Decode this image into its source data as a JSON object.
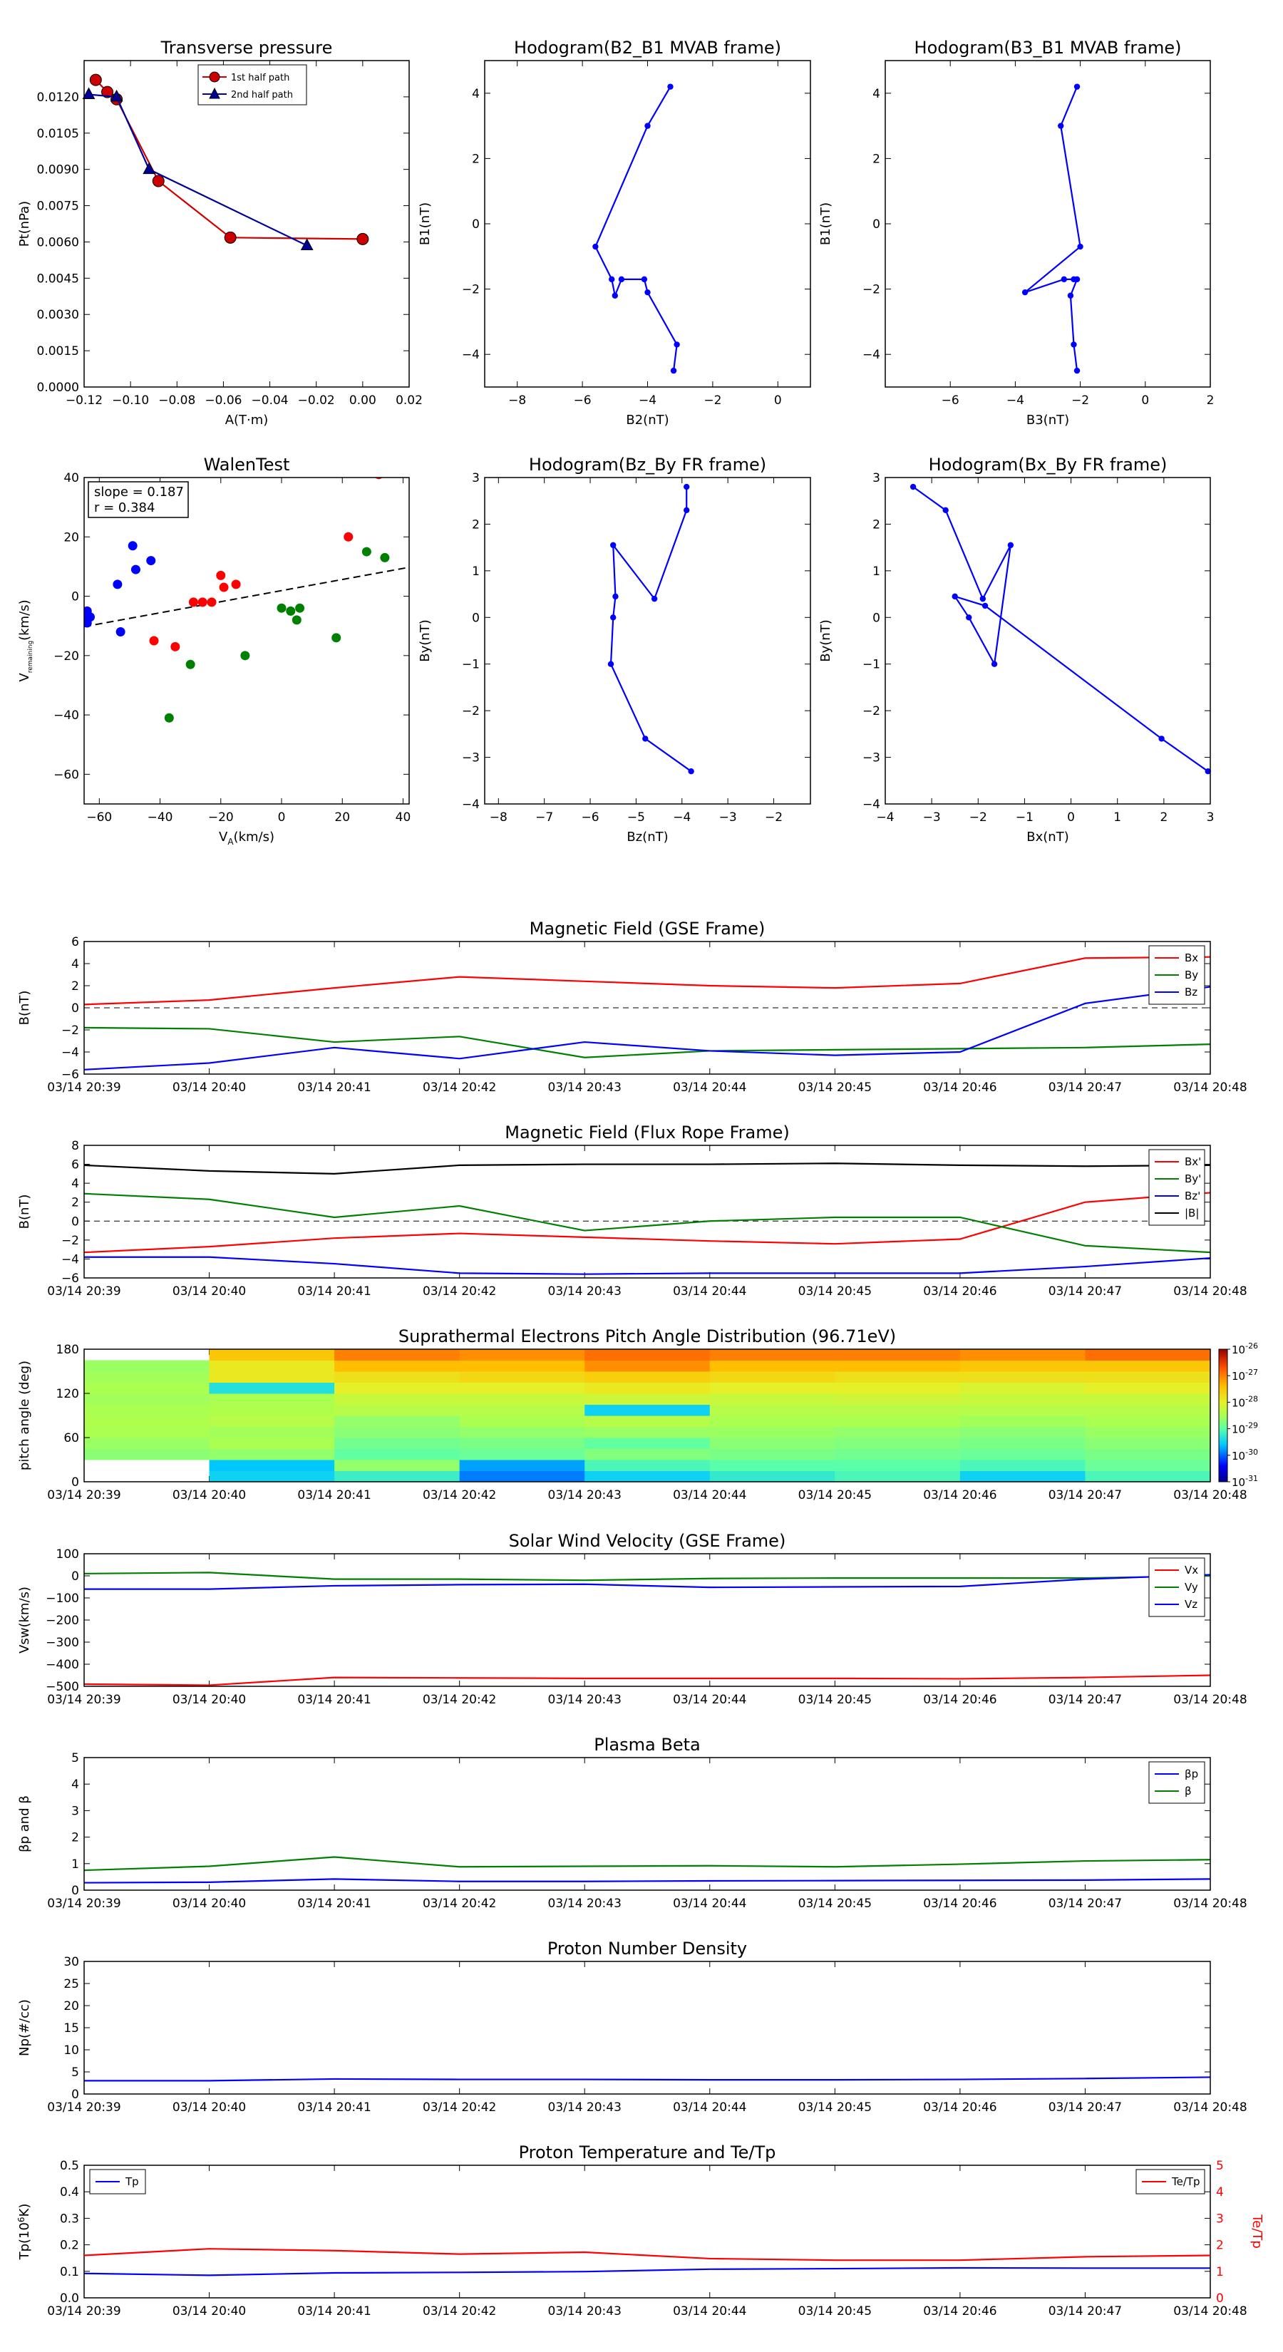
{
  "time_ticks": [
    "03/14 20:39",
    "03/14 20:40",
    "03/14 20:41",
    "03/14 20:42",
    "03/14 20:43",
    "03/14 20:44",
    "03/14 20:45",
    "03/14 20:46",
    "03/14 20:47",
    "03/14 20:48"
  ],
  "chart_data": [
    {
      "id": "pt",
      "type": "line",
      "title": "Transverse pressure",
      "xlabel": "A(T·m)",
      "ylabel": "Pt(nPa)",
      "xlim": [
        -0.12,
        0.02
      ],
      "ylim": [
        0,
        0.0135
      ],
      "xticks": [
        -0.12,
        -0.1,
        -0.08,
        -0.06,
        -0.04,
        -0.02,
        0.0,
        0.02
      ],
      "xtick_labels": [
        "−0.12",
        "−0.10",
        "−0.08",
        "−0.06",
        "−0.04",
        "−0.02",
        "0.00",
        "0.02"
      ],
      "yticks": [
        0,
        0.0015,
        0.003,
        0.0045,
        0.006,
        0.0075,
        0.009,
        0.0105,
        0.012
      ],
      "ytick_labels": [
        "0.0000",
        "0.0015",
        "0.0030",
        "0.0045",
        "0.0060",
        "0.0075",
        "0.0090",
        "0.0105",
        "0.0120"
      ],
      "legend_pos": "top-center",
      "series": [
        {
          "name": "1st half path",
          "color": "#cc0000",
          "marker": "circle",
          "x": [
            0.0,
            -0.057,
            -0.088,
            -0.106,
            -0.11,
            -0.115
          ],
          "y": [
            0.00612,
            0.00618,
            0.00852,
            0.0119,
            0.0122,
            0.0127
          ]
        },
        {
          "name": "2nd half path",
          "color": "#000099",
          "marker": "triangle",
          "x": [
            -0.118,
            -0.106,
            -0.092,
            -0.024
          ],
          "y": [
            0.0121,
            0.012,
            0.009,
            0.00585
          ]
        }
      ]
    },
    {
      "id": "h23",
      "type": "line",
      "title": "Hodogram(B2_B1 MVAB frame)",
      "xlabel": "B2(nT)",
      "ylabel": "B1(nT)",
      "xlim": [
        -9,
        1
      ],
      "ylim": [
        -5,
        5
      ],
      "xticks": [
        -8,
        -6,
        -4,
        -2,
        0
      ],
      "xtick_labels": [
        "−8",
        "−6",
        "−4",
        "−2",
        "0"
      ],
      "yticks": [
        -4,
        -2,
        0,
        2,
        4
      ],
      "ytick_labels": [
        "−4",
        "−2",
        "0",
        "2",
        "4"
      ],
      "series": [
        {
          "name": "",
          "color": "#0000ff",
          "marker": "dot",
          "x": [
            -3.2,
            -3.1,
            -4.0,
            -4.1,
            -4.8,
            -5.0,
            -5.1,
            -5.6,
            -4.0,
            -3.3
          ],
          "y": [
            -4.5,
            -3.7,
            -2.1,
            -1.7,
            -1.7,
            -2.2,
            -1.7,
            -0.7,
            3.0,
            4.2
          ]
        }
      ]
    },
    {
      "id": "h31",
      "type": "line",
      "title": "Hodogram(B3_B1 MVAB frame)",
      "xlabel": "B3(nT)",
      "ylabel": "B1(nT)",
      "xlim": [
        -8,
        2
      ],
      "ylim": [
        -5,
        5
      ],
      "xticks": [
        -6,
        -4,
        -2,
        0,
        2
      ],
      "xtick_labels": [
        "−6",
        "−4",
        "−2",
        "0",
        "2"
      ],
      "yticks": [
        -4,
        -2,
        0,
        2,
        4
      ],
      "ytick_labels": [
        "−4",
        "−2",
        "0",
        "2",
        "4"
      ],
      "series": [
        {
          "name": "",
          "color": "#0000ff",
          "marker": "dot",
          "x": [
            -2.1,
            -2.2,
            -2.3,
            -2.1,
            -2.2,
            -2.5,
            -3.7,
            -2.0,
            -2.6,
            -2.1
          ],
          "y": [
            -4.5,
            -3.7,
            -2.2,
            -1.7,
            -1.7,
            -1.7,
            -2.1,
            -0.7,
            3.0,
            4.2
          ]
        }
      ]
    },
    {
      "id": "walen",
      "type": "scatter",
      "title": "WalenTest",
      "xlabel": "V",
      "xlabel_sub": "A",
      "xlabel_rest": "(km/s)",
      "ylabel": "V",
      "ylabel_sub": "remaining",
      "ylabel_rest": "(km/s)",
      "xlim": [
        -65,
        42
      ],
      "ylim": [
        -70,
        40
      ],
      "xticks": [
        -60,
        -40,
        -20,
        0,
        20,
        40
      ],
      "xtick_labels": [
        "−60",
        "−40",
        "−20",
        "0",
        "20",
        "40"
      ],
      "yticks": [
        -60,
        -40,
        -20,
        0,
        20,
        40
      ],
      "ytick_labels": [
        "−60",
        "−40",
        "−20",
        "0",
        "20",
        "40"
      ],
      "annotation": [
        "slope = 0.187",
        "r = 0.384"
      ],
      "fit": {
        "slope": 0.187,
        "intercept": 1.9
      },
      "series": [
        {
          "name": "",
          "color": "#0000ff",
          "x": [
            -64,
            -64,
            -64,
            -64,
            -63,
            -54,
            -53,
            -49,
            -48,
            -43
          ],
          "y": [
            -5,
            -6,
            -7,
            -9,
            -7,
            4,
            -12,
            17,
            9,
            12
          ]
        },
        {
          "name": "",
          "color": "#ff0000",
          "x": [
            -42,
            -35,
            -29,
            -26,
            -23,
            -20,
            -19,
            -15,
            22,
            32
          ],
          "y": [
            -15,
            -17,
            -2,
            -2,
            -2,
            7,
            3,
            4,
            20,
            41
          ]
        },
        {
          "name": "",
          "color": "#008000",
          "x": [
            -37,
            -30,
            -12,
            0,
            3,
            5,
            6,
            18,
            28,
            34
          ],
          "y": [
            -41,
            -23,
            -20,
            -4,
            -5,
            -8,
            -4,
            -14,
            15,
            13
          ]
        }
      ]
    },
    {
      "id": "hzy",
      "type": "line",
      "title": "Hodogram(Bz_By FR frame)",
      "xlabel": "Bz(nT)",
      "ylabel": "By(nT)",
      "xlim": [
        -8.3,
        -1.2
      ],
      "ylim": [
        -4,
        3
      ],
      "xticks": [
        -8,
        -7,
        -6,
        -5,
        -4,
        -3,
        -2
      ],
      "xtick_labels": [
        "−8",
        "−7",
        "−6",
        "−5",
        "−4",
        "−3",
        "−2"
      ],
      "yticks": [
        -4,
        -3,
        -2,
        -1,
        0,
        1,
        2,
        3
      ],
      "ytick_labels": [
        "−4",
        "−3",
        "−2",
        "−1",
        "0",
        "1",
        "2",
        "3"
      ],
      "series": [
        {
          "name": "",
          "color": "#0000ff",
          "marker": "dot",
          "x": [
            -3.8,
            -4.8,
            -5.55,
            -5.5,
            -5.45,
            -5.5,
            -4.6,
            -3.9,
            -3.9
          ],
          "y": [
            -3.3,
            -2.6,
            -1.0,
            0.0,
            0.45,
            1.55,
            0.4,
            2.3,
            2.8
          ]
        }
      ]
    },
    {
      "id": "hxy",
      "type": "line",
      "title": "Hodogram(Bx_By FR frame)",
      "xlabel": "Bx(nT)",
      "ylabel": "By(nT)",
      "xlim": [
        -4,
        3
      ],
      "ylim": [
        -4,
        3
      ],
      "xticks": [
        -4,
        -3,
        -2,
        -1,
        0,
        1,
        2,
        3
      ],
      "xtick_labels": [
        "−4",
        "−3",
        "−2",
        "−1",
        "0",
        "1",
        "2",
        "3"
      ],
      "yticks": [
        -4,
        -3,
        -2,
        -1,
        0,
        1,
        2,
        3
      ],
      "ytick_labels": [
        "−4",
        "−3",
        "−2",
        "−1",
        "0",
        "1",
        "2",
        "3"
      ],
      "series": [
        {
          "name": "",
          "color": "#0000ff",
          "marker": "dot",
          "x": [
            2.95,
            1.95,
            -1.85,
            -2.5,
            -2.2,
            -1.65,
            -1.3,
            -1.9,
            -2.7,
            -3.4
          ],
          "y": [
            -3.3,
            -2.6,
            0.25,
            0.45,
            0.0,
            -1.0,
            1.55,
            0.4,
            2.3,
            2.8
          ]
        }
      ]
    },
    {
      "id": "bgse",
      "type": "line",
      "title": "Magnetic Field (GSE Frame)",
      "ylabel": "B(nT)",
      "ylim": [
        -6,
        6
      ],
      "yticks": [
        -6,
        -4,
        -2,
        0,
        2,
        4,
        6
      ],
      "ytick_labels": [
        "−6",
        "−4",
        "−2",
        "0",
        "2",
        "4",
        "6"
      ],
      "zero_line": true,
      "legend_pos": "top-right",
      "series": [
        {
          "name": "Bx",
          "color": "#ff0000",
          "values": [
            0.3,
            0.7,
            1.8,
            2.8,
            2.4,
            2.0,
            1.8,
            2.2,
            4.5,
            4.6
          ]
        },
        {
          "name": "By",
          "color": "#008000",
          "values": [
            -1.8,
            -1.9,
            -3.1,
            -2.6,
            -4.5,
            -3.9,
            -3.8,
            -3.7,
            -3.6,
            -3.3
          ]
        },
        {
          "name": "Bz",
          "color": "#0000ff",
          "values": [
            -5.6,
            -5.0,
            -3.6,
            -4.6,
            -3.1,
            -3.9,
            -4.3,
            -4.0,
            0.4,
            1.9
          ]
        }
      ]
    },
    {
      "id": "bfr",
      "type": "line",
      "title": "Magnetic Field (Flux Rope Frame)",
      "ylabel": "B(nT)",
      "ylim": [
        -6,
        8
      ],
      "yticks": [
        -6,
        -4,
        -2,
        0,
        2,
        4,
        6,
        8
      ],
      "ytick_labels": [
        "−6",
        "−4",
        "−2",
        "0",
        "2",
        "4",
        "6",
        "8"
      ],
      "zero_line": true,
      "legend_pos": "top-right",
      "series": [
        {
          "name": "Bx'",
          "color": "#ff0000",
          "values": [
            -3.3,
            -2.7,
            -1.8,
            -1.3,
            -1.7,
            -2.1,
            -2.4,
            -1.9,
            2.0,
            3.0
          ]
        },
        {
          "name": "By'",
          "color": "#008000",
          "values": [
            2.9,
            2.3,
            0.4,
            1.6,
            -1.0,
            0.0,
            0.4,
            0.4,
            -2.6,
            -3.3
          ]
        },
        {
          "name": "Bz'",
          "color": "#0000ff",
          "values": [
            -3.8,
            -3.8,
            -4.5,
            -5.5,
            -5.6,
            -5.5,
            -5.5,
            -5.5,
            -4.8,
            -3.9
          ]
        },
        {
          "name": "|B|",
          "color": "#000000",
          "values": [
            5.9,
            5.3,
            5.0,
            5.9,
            6.0,
            6.0,
            6.1,
            5.9,
            5.8,
            5.9
          ]
        }
      ]
    },
    {
      "id": "pad",
      "type": "heatmap",
      "title": "Suprathermal Electrons Pitch Angle Distribution (96.71eV)",
      "ylabel": "pitch angle (deg)",
      "ylim": [
        0,
        180
      ],
      "yticks": [
        0,
        60,
        120,
        180
      ],
      "ytick_labels": [
        "0",
        "60",
        "120",
        "180"
      ],
      "colorbar_ticks": [
        {
          "base": "10",
          "exp": "-26"
        },
        {
          "base": "10",
          "exp": "-27"
        },
        {
          "base": "10",
          "exp": "-28"
        },
        {
          "base": "10",
          "exp": "-29"
        },
        {
          "base": "10",
          "exp": "-30"
        },
        {
          "base": "10",
          "exp": "-31"
        }
      ],
      "scale_min": 0,
      "scale_max": 1,
      "columns": [
        [
          null,
          null,
          0.46,
          0.48,
          0.5,
          0.51,
          0.5,
          0.49,
          0.5,
          0.49,
          0.48,
          null
        ],
        [
          0.3,
          0.28,
          0.47,
          0.5,
          0.49,
          0.52,
          0.51,
          0.5,
          0.33,
          0.62,
          0.62,
          0.7
        ],
        [
          0.36,
          0.47,
          0.41,
          0.43,
          0.46,
          0.47,
          0.52,
          0.55,
          0.6,
          0.64,
          0.72,
          0.8
        ],
        [
          0.22,
          0.25,
          0.42,
          0.44,
          0.47,
          0.5,
          0.52,
          0.55,
          0.6,
          0.66,
          0.72,
          0.78
        ],
        [
          0.3,
          0.38,
          0.45,
          0.41,
          0.48,
          0.52,
          0.3,
          0.56,
          0.62,
          0.68,
          0.78,
          0.82
        ],
        [
          0.35,
          0.4,
          0.44,
          0.46,
          0.48,
          0.5,
          0.52,
          0.55,
          0.6,
          0.66,
          0.72,
          0.8
        ],
        [
          0.38,
          0.4,
          0.43,
          0.45,
          0.47,
          0.5,
          0.52,
          0.56,
          0.6,
          0.64,
          0.72,
          0.8
        ],
        [
          0.3,
          0.38,
          0.42,
          0.44,
          0.46,
          0.49,
          0.52,
          0.55,
          0.58,
          0.64,
          0.7,
          0.78
        ],
        [
          0.38,
          0.42,
          0.44,
          0.46,
          0.48,
          0.5,
          0.52,
          0.55,
          0.6,
          0.64,
          0.7,
          0.82
        ]
      ]
    },
    {
      "id": "vsw",
      "type": "line",
      "title": "Solar Wind Velocity (GSE Frame)",
      "ylabel": "Vsw(km/s)",
      "ylim": [
        -500,
        100
      ],
      "yticks": [
        -500,
        -400,
        -300,
        -200,
        -100,
        0,
        100
      ],
      "ytick_labels": [
        "−500",
        "−400",
        "−300",
        "−200",
        "−100",
        "0",
        "100"
      ],
      "legend_pos": "top-right",
      "series": [
        {
          "name": "Vx",
          "color": "#ff0000",
          "values": [
            -490,
            -495,
            -460,
            -462,
            -464,
            -464,
            -464,
            -466,
            -460,
            -450
          ]
        },
        {
          "name": "Vy",
          "color": "#008000",
          "values": [
            10,
            15,
            -15,
            -15,
            -20,
            -12,
            -10,
            -10,
            -10,
            0
          ]
        },
        {
          "name": "Vz",
          "color": "#0000ff",
          "values": [
            -60,
            -60,
            -45,
            -40,
            -38,
            -52,
            -50,
            -48,
            -15,
            5
          ]
        }
      ]
    },
    {
      "id": "beta",
      "type": "line",
      "title": "Plasma Beta",
      "ylabel": "βp and β",
      "ylim": [
        0,
        5
      ],
      "yticks": [
        0,
        1,
        2,
        3,
        4,
        5
      ],
      "ytick_labels": [
        "0",
        "1",
        "2",
        "3",
        "4",
        "5"
      ],
      "legend_pos": "top-right",
      "series": [
        {
          "name": "βp",
          "color": "#0000ff",
          "values": [
            0.28,
            0.3,
            0.42,
            0.33,
            0.33,
            0.35,
            0.36,
            0.37,
            0.38,
            0.42
          ]
        },
        {
          "name": "β",
          "color": "#008000",
          "values": [
            0.75,
            0.9,
            1.25,
            0.88,
            0.9,
            0.92,
            0.88,
            0.98,
            1.1,
            1.15
          ]
        }
      ]
    },
    {
      "id": "np",
      "type": "line",
      "title": "Proton Number Density",
      "ylabel": "Np(#/cc)",
      "ylim": [
        0,
        30
      ],
      "yticks": [
        0,
        5,
        10,
        15,
        20,
        25,
        30
      ],
      "ytick_labels": [
        "0",
        "5",
        "10",
        "15",
        "20",
        "25",
        "30"
      ],
      "series": [
        {
          "name": "",
          "color": "#0000ff",
          "values": [
            3.0,
            3.0,
            3.4,
            3.3,
            3.3,
            3.2,
            3.2,
            3.3,
            3.5,
            3.8
          ]
        }
      ]
    },
    {
      "id": "tp",
      "type": "line",
      "title": "Proton Temperature and Te/Tp",
      "ylabel": "Tp(10",
      "ylabel_sup": "6",
      "ylabel_rest": "K)",
      "ylim": [
        0,
        0.5
      ],
      "yticks": [
        0,
        0.1,
        0.2,
        0.3,
        0.4,
        0.5
      ],
      "ytick_labels": [
        "0.0",
        "0.1",
        "0.2",
        "0.3",
        "0.4",
        "0.5"
      ],
      "ylabel2": "Te/Tp",
      "ylim2": [
        0,
        5
      ],
      "yticks2": [
        0,
        1,
        2,
        3,
        4,
        5
      ],
      "ytick_labels2": [
        "0",
        "1",
        "2",
        "3",
        "4",
        "5"
      ],
      "legend_left": "Tp",
      "legend_right": "Te/Tp",
      "series": [
        {
          "name": "Tp",
          "color": "#0000ff",
          "axis": "left",
          "values": [
            0.092,
            0.085,
            0.094,
            0.096,
            0.099,
            0.108,
            0.11,
            0.113,
            0.112,
            0.112
          ]
        },
        {
          "name": "Te/Tp",
          "color": "#ff0000",
          "axis": "right",
          "values": [
            1.6,
            1.85,
            1.78,
            1.65,
            1.72,
            1.48,
            1.42,
            1.42,
            1.55,
            1.6
          ]
        }
      ]
    }
  ]
}
